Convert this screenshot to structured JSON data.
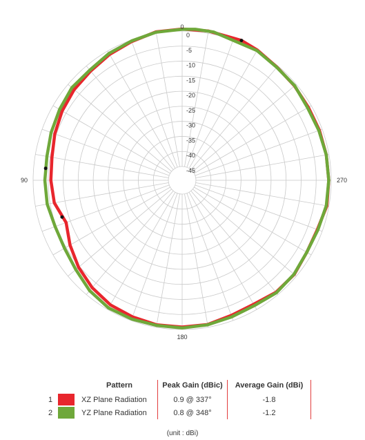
{
  "chart_data": {
    "type": "polar-line",
    "radial_ticks": [
      "0",
      "-5",
      "-10",
      "-15",
      "-20",
      "-25",
      "-30",
      "-35",
      "-40",
      "-45"
    ],
    "radial_range": [
      -45,
      0
    ],
    "angle_ticks": [
      "0",
      "90",
      "180",
      "270"
    ],
    "angle_step_deg": 10,
    "grid": true,
    "series": [
      {
        "name": "XZ Plane Radiation",
        "color": "#e8262d",
        "points": [
          [
            0,
            0.7
          ],
          [
            10,
            0.5
          ],
          [
            20,
            -0.5
          ],
          [
            30,
            -1.3
          ],
          [
            40,
            -2.2
          ],
          [
            50,
            -2.7
          ],
          [
            60,
            -3.5
          ],
          [
            70,
            -4.5
          ],
          [
            80,
            -5.6
          ],
          [
            90,
            -5.9
          ],
          [
            100,
            -6.4
          ],
          [
            110,
            -8.5
          ],
          [
            120,
            -6.5
          ],
          [
            130,
            -4.6
          ],
          [
            140,
            -3.0
          ],
          [
            150,
            -1.8
          ],
          [
            160,
            -1.3
          ],
          [
            170,
            -0.8
          ],
          [
            180,
            -0.8
          ],
          [
            190,
            -0.9
          ],
          [
            200,
            -1.8
          ],
          [
            210,
            -2.0
          ],
          [
            220,
            -1.0
          ],
          [
            230,
            -0.9
          ],
          [
            240,
            -1.7
          ],
          [
            250,
            -1.7
          ],
          [
            260,
            -0.7
          ],
          [
            270,
            -0.8
          ],
          [
            280,
            -0.9
          ],
          [
            290,
            -1.0
          ],
          [
            300,
            -1.1
          ],
          [
            310,
            -0.8
          ],
          [
            320,
            -0.5
          ],
          [
            330,
            0.4
          ],
          [
            337,
            0.9
          ],
          [
            350,
            0.8
          ]
        ]
      },
      {
        "name": "YZ Plane Radiation",
        "color": "#6fa83a",
        "points": [
          [
            0,
            0.6
          ],
          [
            10,
            0.4
          ],
          [
            20,
            -0.3
          ],
          [
            30,
            -0.9
          ],
          [
            40,
            -1.8
          ],
          [
            50,
            -1.7
          ],
          [
            60,
            -2.5
          ],
          [
            70,
            -3.2
          ],
          [
            80,
            -3.9
          ],
          [
            90,
            -3.9
          ],
          [
            100,
            -4.0
          ],
          [
            110,
            -4.6
          ],
          [
            120,
            -4.4
          ],
          [
            130,
            -3.4
          ],
          [
            140,
            -1.7
          ],
          [
            150,
            -0.6
          ],
          [
            160,
            -0.5
          ],
          [
            170,
            -0.6
          ],
          [
            180,
            -0.5
          ],
          [
            190,
            -0.8
          ],
          [
            200,
            -1.3
          ],
          [
            210,
            -1.5
          ],
          [
            220,
            -0.8
          ],
          [
            230,
            -1.0
          ],
          [
            240,
            -1.7
          ],
          [
            250,
            -1.5
          ],
          [
            260,
            -0.9
          ],
          [
            270,
            -0.8
          ],
          [
            280,
            -0.9
          ],
          [
            290,
            -1.2
          ],
          [
            300,
            -1.4
          ],
          [
            310,
            -0.7
          ],
          [
            320,
            -0.6
          ],
          [
            330,
            0.2
          ],
          [
            348,
            0.8
          ],
          [
            355,
            0.8
          ]
        ]
      }
    ]
  },
  "legend": {
    "header_pattern": "Pattern",
    "header_peak": "Peak Gain (dBic)",
    "header_avg": "Average Gain (dBi)",
    "rows": [
      {
        "num": "1",
        "name": "XZ Plane Radiation",
        "peak": "0.9 @ 337°",
        "avg": "-1.8",
        "color": "#e8262d"
      },
      {
        "num": "2",
        "name": "YZ Plane Radiation",
        "peak": "0.8 @ 348°",
        "avg": "-1.2",
        "color": "#6fa83a"
      }
    ]
  },
  "unit_note": "(unit : dBi)"
}
